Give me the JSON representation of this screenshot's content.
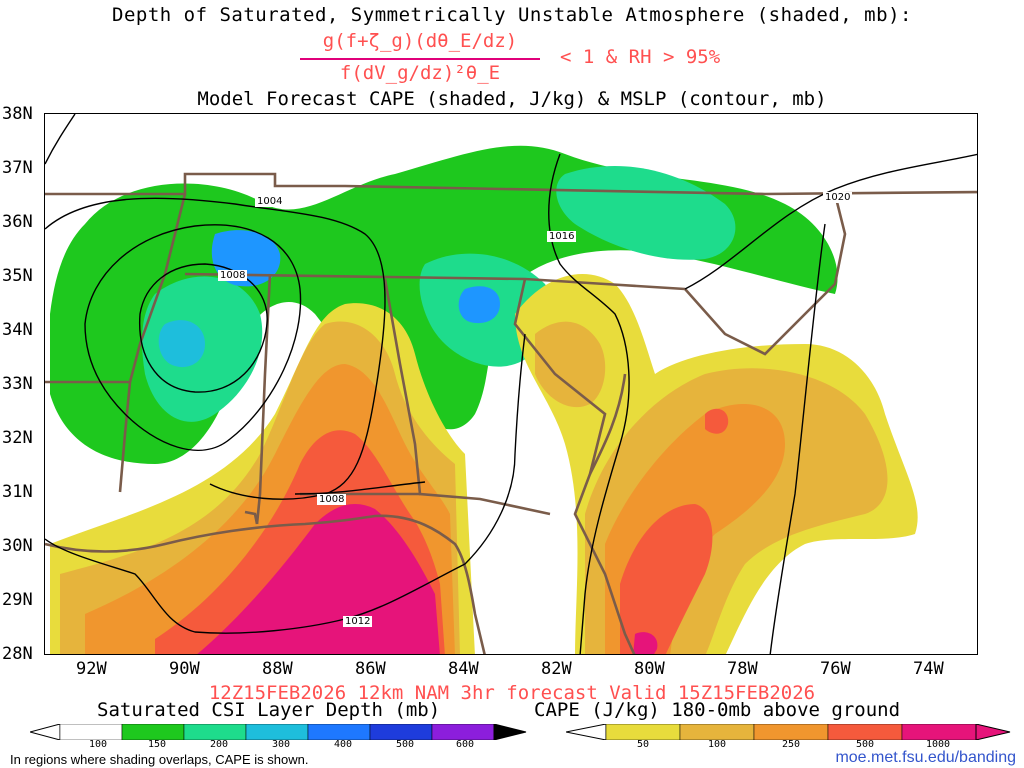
{
  "titles": {
    "line1": "Depth of Saturated, Symmetrically Unstable Atmosphere (shaded, mb):",
    "numerator": "g(f+ζ_g)(dθ_E/dz)",
    "denominator": "f(dV_g/dz)²θ_E",
    "condition": "< 1 & RH > 95%",
    "line3": "Model Forecast CAPE (shaded, J/kg) & MSLP (contour, mb)",
    "valid": "12Z15FEB2026 12km NAM 3hr forecast Valid 15Z15FEB2026"
  },
  "axes": {
    "lat": [
      "38N",
      "37N",
      "36N",
      "35N",
      "34N",
      "33N",
      "32N",
      "31N",
      "30N",
      "29N",
      "28N"
    ],
    "lon": [
      "92W",
      "90W",
      "88W",
      "86W",
      "84W",
      "82W",
      "80W",
      "78W",
      "76W",
      "74W"
    ]
  },
  "isobars": [
    {
      "label": "1004"
    },
    {
      "label": "1008"
    },
    {
      "label": "1008"
    },
    {
      "label": "1012"
    },
    {
      "label": "1016"
    },
    {
      "label": "1020"
    }
  ],
  "colorbars": {
    "csi": {
      "title": "Saturated CSI Layer Depth (mb)",
      "ticks": [
        "100",
        "150",
        "200",
        "300",
        "400",
        "500",
        "600"
      ],
      "colors": [
        "#ffffff",
        "#1ec81e",
        "#1edc8c",
        "#1ebedc",
        "#1e78ff",
        "#1e3cdc",
        "#8c1edc",
        "#000000"
      ]
    },
    "cape": {
      "title": "CAPE (J/kg) 180-0mb above ground",
      "ticks": [
        "50",
        "100",
        "250",
        "500",
        "1000"
      ],
      "colors": [
        "#ffffff",
        "#e8dc3c",
        "#e6b43c",
        "#f0962e",
        "#f55a3c",
        "#e6147a"
      ]
    }
  },
  "footer": {
    "note": "In regions where shading overlaps, CAPE is shown.",
    "url": "moe.met.fsu.edu/banding"
  }
}
